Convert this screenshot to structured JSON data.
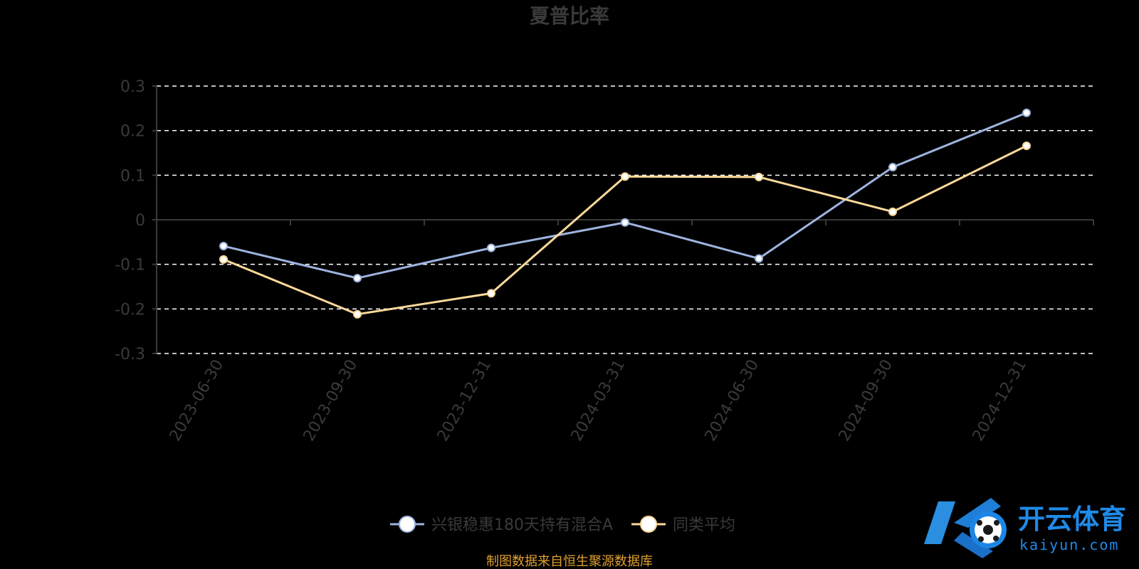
{
  "chart_data": {
    "type": "line",
    "title": "夏普比率",
    "categories": [
      "2023-06-30",
      "2023-09-30",
      "2023-12-31",
      "2024-03-31",
      "2024-06-30",
      "2024-09-30",
      "2024-12-31"
    ],
    "yticks": [
      "0.3",
      "0.2",
      "0.1",
      "0",
      "-0.1",
      "-0.2",
      "-0.3"
    ],
    "ylim": [
      -0.3,
      0.3
    ],
    "grid": true,
    "legend_position": "bottom",
    "series": [
      {
        "name": "兴银稳惠180天持有混合A",
        "color": "#9db4e0",
        "values": [
          -0.059,
          -0.131,
          -0.063,
          -0.006,
          -0.087,
          0.118,
          0.24
        ]
      },
      {
        "name": "同类平均",
        "color": "#fbd99a",
        "values": [
          -0.089,
          -0.212,
          -0.165,
          0.097,
          0.096,
          0.018,
          0.166
        ]
      }
    ]
  },
  "source_note": "制图数据来自恒生聚源数据库",
  "watermark": {
    "brand": "开云体育",
    "domain": "kaiyun.com"
  },
  "colors": {
    "background": "#000000",
    "text": "#3a3a3a",
    "source": "#e0a030",
    "grid": "#ffffff"
  }
}
